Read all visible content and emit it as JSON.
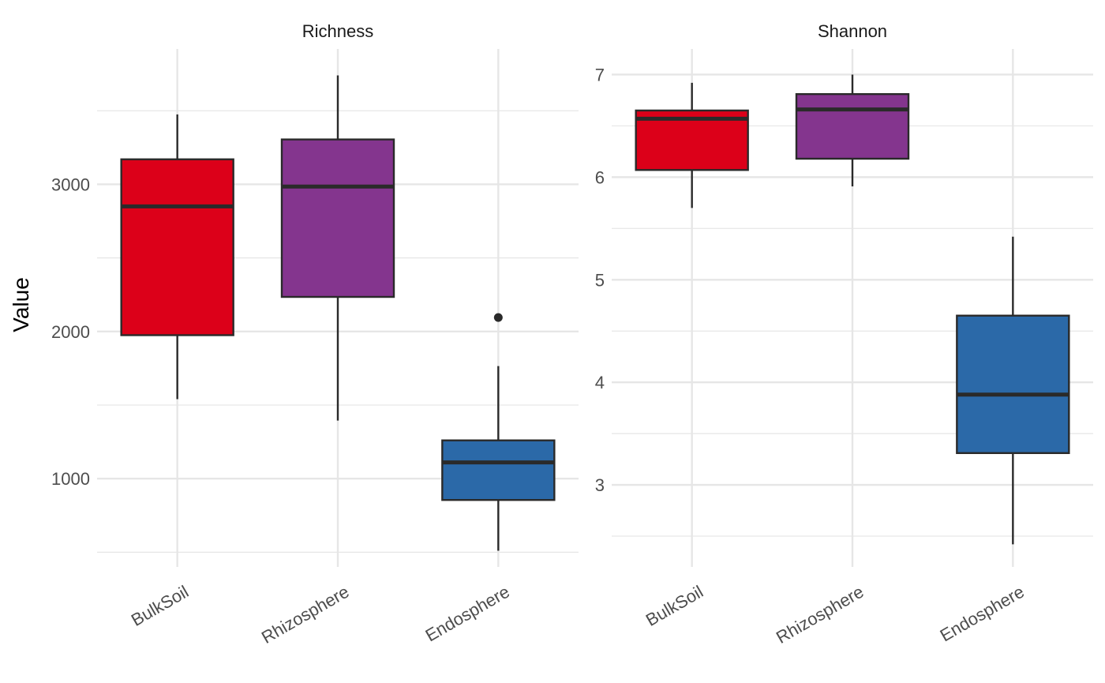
{
  "chart_data": {
    "type": "boxplot",
    "ylabel": "Value",
    "grid": true,
    "legend": "none",
    "categories": [
      "BulkSoil",
      "Rhizosphere",
      "Endosphere"
    ],
    "colors": {
      "BulkSoil": "#DC0019",
      "Rhizosphere": "#84358E",
      "Endosphere": "#2B69A8",
      "outline": "#2a2a2a",
      "grid": "#e6e6e6"
    },
    "panels": [
      {
        "title": "Richness",
        "ylim": [
          400,
          3920
        ],
        "yticks": [
          1000,
          2000,
          3000
        ],
        "boxes": [
          {
            "category": "BulkSoil",
            "min": 1540,
            "q1": 1975,
            "median": 2850,
            "q3": 3170,
            "max": 3475,
            "outliers": []
          },
          {
            "category": "Rhizosphere",
            "min": 1395,
            "q1": 2235,
            "median": 2985,
            "q3": 3305,
            "max": 3740,
            "outliers": []
          },
          {
            "category": "Endosphere",
            "min": 510,
            "q1": 855,
            "median": 1110,
            "q3": 1260,
            "max": 1765,
            "outliers": [
              2095
            ]
          }
        ]
      },
      {
        "title": "Shannon",
        "ylim": [
          2.2,
          7.25
        ],
        "yticks": [
          3,
          4,
          5,
          6,
          7
        ],
        "boxes": [
          {
            "category": "BulkSoil",
            "min": 5.7,
            "q1": 6.07,
            "median": 6.57,
            "q3": 6.65,
            "max": 6.92,
            "outliers": []
          },
          {
            "category": "Rhizosphere",
            "min": 5.91,
            "q1": 6.18,
            "median": 6.66,
            "q3": 6.81,
            "max": 7.0,
            "outliers": []
          },
          {
            "category": "Endosphere",
            "min": 2.42,
            "q1": 3.31,
            "median": 3.88,
            "q3": 4.65,
            "max": 5.42,
            "outliers": []
          }
        ]
      }
    ]
  }
}
